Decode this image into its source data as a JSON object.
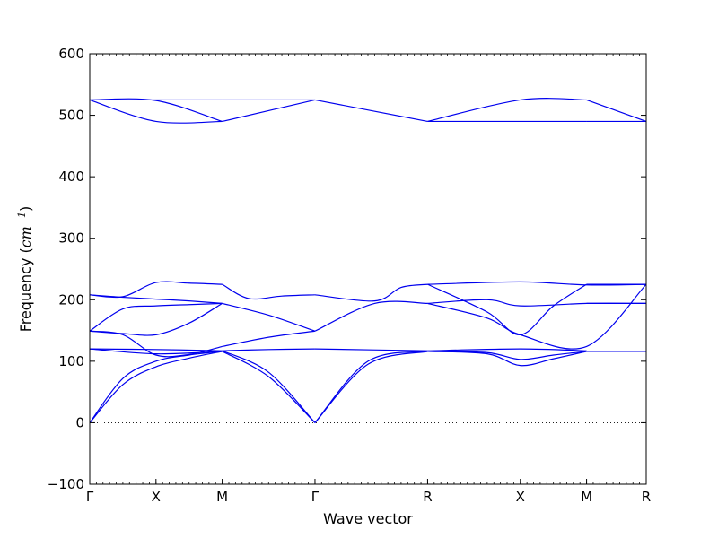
{
  "chart_data": {
    "type": "line",
    "title": "",
    "xlabel": "Wave vector",
    "ylabel": {
      "prefix": "Frequency (",
      "unit_base": "cm",
      "unit_exp": "−1",
      "suffix": ")"
    },
    "ylim": [
      -100,
      600
    ],
    "yticks": [
      -100,
      0,
      100,
      200,
      300,
      400,
      500,
      600
    ],
    "x_range": [
      0,
      8.4
    ],
    "high_symmetry_points": [
      {
        "label": "Γ",
        "x": 0
      },
      {
        "label": "X",
        "x": 1.0
      },
      {
        "label": "M",
        "x": 2.0
      },
      {
        "label": "Γ",
        "x": 3.4
      },
      {
        "label": "R",
        "x": 5.1
      },
      {
        "label": "X",
        "x": 6.5
      },
      {
        "label": "M",
        "x": 7.5
      },
      {
        "label": "R",
        "x": 8.4
      }
    ],
    "zero_line": true,
    "line_color": "#0000ee",
    "series": [
      {
        "values": [
          [
            0,
            0
          ],
          [
            0.5,
            62
          ],
          [
            1.0,
            91
          ],
          [
            1.5,
            105
          ],
          [
            2.0,
            116
          ]
        ]
      },
      {
        "values": [
          [
            0,
            0
          ],
          [
            0.5,
            72
          ],
          [
            1.0,
            100
          ],
          [
            1.5,
            110
          ],
          [
            2.0,
            116
          ]
        ]
      },
      {
        "values": [
          [
            0,
            120
          ],
          [
            1.0,
            119
          ],
          [
            2.0,
            117
          ]
        ]
      },
      {
        "values": [
          [
            0,
            120
          ],
          [
            1.0,
            112
          ],
          [
            2.0,
            116
          ]
        ]
      },
      {
        "values": [
          [
            2.0,
            116
          ],
          [
            2.7,
            75
          ],
          [
            3.4,
            0
          ]
        ]
      },
      {
        "values": [
          [
            2.0,
            117
          ],
          [
            2.7,
            82
          ],
          [
            3.4,
            0
          ]
        ]
      },
      {
        "values": [
          [
            2.0,
            117
          ],
          [
            2.7,
            119
          ],
          [
            3.4,
            120
          ]
        ]
      },
      {
        "values": [
          [
            3.4,
            0
          ],
          [
            4.2,
            95
          ],
          [
            5.1,
            116
          ]
        ]
      },
      {
        "values": [
          [
            3.4,
            0
          ],
          [
            4.2,
            100
          ],
          [
            5.1,
            116
          ]
        ]
      },
      {
        "values": [
          [
            3.4,
            120
          ],
          [
            5.1,
            117
          ]
        ]
      },
      {
        "values": [
          [
            5.1,
            116
          ],
          [
            6.0,
            112
          ],
          [
            6.5,
            93
          ],
          [
            7.0,
            104
          ],
          [
            7.5,
            116
          ]
        ]
      },
      {
        "values": [
          [
            5.1,
            116
          ],
          [
            6.0,
            114
          ],
          [
            6.5,
            103
          ],
          [
            7.0,
            110
          ],
          [
            7.5,
            116
          ]
        ]
      },
      {
        "values": [
          [
            5.1,
            117
          ],
          [
            6.5,
            120
          ],
          [
            7.5,
            117
          ]
        ]
      },
      {
        "values": [
          [
            7.5,
            116
          ],
          [
            8.4,
            116
          ]
        ]
      },
      {
        "values": [
          [
            0,
            149
          ],
          [
            0.5,
            145
          ],
          [
            1.0,
            143
          ],
          [
            1.5,
            162
          ],
          [
            2.0,
            194
          ]
        ]
      },
      {
        "values": [
          [
            0,
            149
          ],
          [
            0.5,
            185
          ],
          [
            1.0,
            190
          ],
          [
            1.5,
            192
          ],
          [
            2.0,
            194
          ]
        ]
      },
      {
        "values": [
          [
            0,
            208
          ],
          [
            0.5,
            205
          ],
          [
            1.0,
            228
          ],
          [
            1.5,
            227
          ],
          [
            2.0,
            225
          ]
        ]
      },
      {
        "values": [
          [
            0,
            208
          ],
          [
            0.5,
            204
          ],
          [
            1.0,
            201
          ],
          [
            1.5,
            198
          ],
          [
            2.0,
            194
          ]
        ]
      },
      {
        "values": [
          [
            0,
            149
          ],
          [
            0.5,
            143
          ],
          [
            1.0,
            110
          ],
          [
            1.5,
            111
          ],
          [
            2.0,
            124
          ]
        ]
      },
      {
        "values": [
          [
            2.0,
            225
          ],
          [
            2.4,
            202
          ],
          [
            2.9,
            206
          ],
          [
            3.4,
            208
          ]
        ]
      },
      {
        "values": [
          [
            2.0,
            194
          ],
          [
            2.7,
            175
          ],
          [
            3.4,
            149
          ]
        ]
      },
      {
        "values": [
          [
            2.0,
            124
          ],
          [
            2.7,
            139
          ],
          [
            3.4,
            149
          ]
        ]
      },
      {
        "values": [
          [
            3.4,
            208
          ],
          [
            4.3,
            198
          ],
          [
            4.7,
            220
          ],
          [
            5.1,
            225
          ]
        ]
      },
      {
        "values": [
          [
            3.4,
            149
          ],
          [
            4.3,
            194
          ],
          [
            5.1,
            194
          ]
        ]
      },
      {
        "values": [
          [
            5.1,
            225
          ],
          [
            6.5,
            229
          ],
          [
            7.5,
            224
          ],
          [
            8.4,
            225
          ]
        ]
      },
      {
        "values": [
          [
            5.1,
            194
          ],
          [
            6.0,
            200
          ],
          [
            6.5,
            190
          ],
          [
            7.5,
            194
          ],
          [
            8.4,
            194
          ]
        ]
      },
      {
        "values": [
          [
            5.1,
            225
          ],
          [
            6.0,
            180
          ],
          [
            6.5,
            143
          ],
          [
            7.0,
            190
          ],
          [
            7.5,
            225
          ]
        ]
      },
      {
        "values": [
          [
            5.1,
            194
          ],
          [
            6.0,
            170
          ],
          [
            6.5,
            143
          ],
          [
            7.5,
            124
          ],
          [
            8.4,
            225
          ]
        ]
      },
      {
        "values": [
          [
            7.5,
            225
          ],
          [
            8.4,
            225
          ]
        ]
      },
      {
        "values": [
          [
            7.5,
            194
          ],
          [
            8.4,
            194
          ]
        ]
      },
      {
        "values": [
          [
            0,
            525
          ],
          [
            1.0,
            525
          ],
          [
            2.0,
            525
          ]
        ]
      },
      {
        "values": [
          [
            0,
            525
          ],
          [
            1.0,
            490
          ],
          [
            2.0,
            490
          ]
        ]
      },
      {
        "values": [
          [
            0,
            525
          ],
          [
            1.0,
            524
          ],
          [
            2.0,
            490
          ]
        ]
      },
      {
        "values": [
          [
            2.0,
            490
          ],
          [
            3.4,
            525
          ]
        ]
      },
      {
        "values": [
          [
            2.0,
            525
          ],
          [
            3.4,
            525
          ]
        ]
      },
      {
        "values": [
          [
            3.4,
            525
          ],
          [
            5.1,
            490
          ]
        ]
      },
      {
        "values": [
          [
            5.1,
            490
          ],
          [
            6.5,
            525
          ],
          [
            7.5,
            525
          ]
        ]
      },
      {
        "values": [
          [
            5.1,
            490
          ],
          [
            6.5,
            490
          ],
          [
            7.5,
            490
          ]
        ]
      },
      {
        "values": [
          [
            7.5,
            525
          ],
          [
            8.4,
            490
          ]
        ]
      },
      {
        "values": [
          [
            7.5,
            490
          ],
          [
            8.4,
            490
          ]
        ]
      }
    ]
  }
}
